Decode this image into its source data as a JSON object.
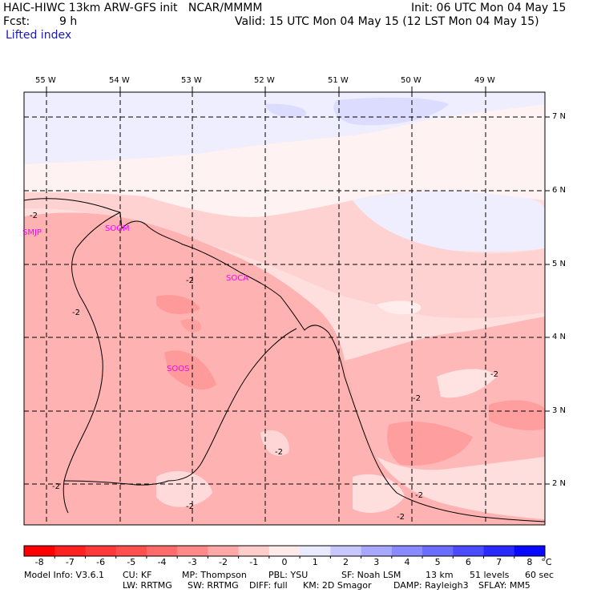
{
  "header": {
    "model_line": "HAIC-HIWC 13km ARW-GFS init   NCAR/MMMM",
    "init": "Init: 06 UTC Mon 04 May 15",
    "fcst_label": "Fcst:",
    "fcst_value": "9 h",
    "valid": "Valid: 15 UTC Mon 04 May 15 (12 LST Mon 04 May 15)",
    "field": "Lifted index"
  },
  "map": {
    "lon_labels": [
      "55 W",
      "54 W",
      "53 W",
      "52 W",
      "51 W",
      "50 W",
      "49 W"
    ],
    "lat_labels": [
      "7 N",
      "6 N",
      "5 N",
      "4 N",
      "3 N",
      "2 N"
    ],
    "stations": [
      {
        "id": "SMJP",
        "label": "SMJP"
      },
      {
        "id": "SOGM",
        "label": "SOGM"
      },
      {
        "id": "SOCA",
        "label": "SOCA"
      },
      {
        "id": "SOOS",
        "label": "SOOS"
      }
    ],
    "contour_labels": [
      "-2",
      "-2",
      "-2",
      "-2",
      "-2",
      "-2",
      "-2",
      "-2",
      "-2",
      "-2"
    ],
    "station_color": "#ff00ff"
  },
  "colorbar": {
    "ticks": [
      "-8",
      "-7",
      "-6",
      "-5",
      "-4",
      "-3",
      "-2",
      "-1",
      "0",
      "1",
      "2",
      "3",
      "4",
      "5",
      "6",
      "7",
      "8"
    ],
    "unit": "°C",
    "colors": [
      "#ff0000",
      "#ff2020",
      "#ff3838",
      "#ff5050",
      "#ff6a6a",
      "#ff8888",
      "#ffa8a8",
      "#ffcccc",
      "#ffeaea",
      "#eaeaff",
      "#c8c8ff",
      "#a8a8ff",
      "#8a8aff",
      "#6c6cff",
      "#4c4cff",
      "#2a2aff",
      "#0808ff"
    ]
  },
  "footer": {
    "line1": [
      "Model Info: V3.6.1",
      "CU: KF",
      "MP: Thompson",
      "PBL: YSU",
      "SF: Noah LSM",
      "13 km",
      "51 levels",
      "60 sec"
    ],
    "line2": [
      "LW: RRTMG",
      "SW: RRTMG",
      "DIFF: full",
      "KM: 2D Smagor",
      "DAMP: Rayleigh3",
      "SFLAY: MM5"
    ]
  }
}
